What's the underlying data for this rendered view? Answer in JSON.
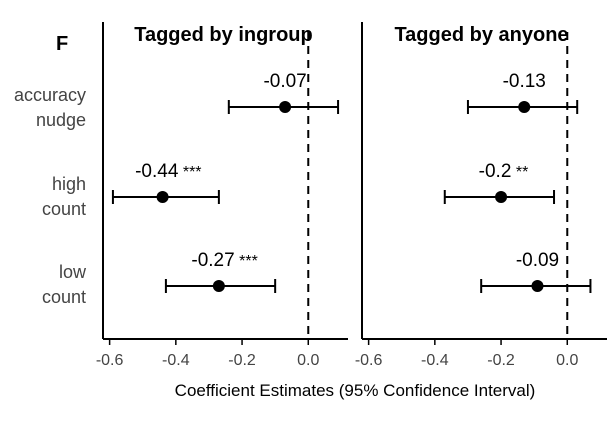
{
  "panel_letter": "F",
  "chart_data": {
    "type": "scatter",
    "subtype": "coefficient-plot-with-error-bars",
    "xlabel": "Coefficient Estimates (95% Confidence Interval)",
    "categories": [
      {
        "lines": [
          "accuracy",
          "nudge"
        ]
      },
      {
        "lines": [
          "high",
          "count"
        ]
      },
      {
        "lines": [
          "low",
          "count"
        ]
      }
    ],
    "xlim": [
      -0.62,
      0.12
    ],
    "xticks": [
      -0.6,
      -0.4,
      -0.2,
      0.0
    ],
    "xtick_labels": [
      "-0.6",
      "-0.4",
      "-0.2",
      "0.0"
    ],
    "reference_line_x": 0.0,
    "panels": [
      {
        "title": "Tagged by ingroup",
        "points": [
          {
            "estimate": -0.07,
            "ci": [
              -0.24,
              0.09
            ],
            "label": "-0.07",
            "stars": ""
          },
          {
            "estimate": -0.44,
            "ci": [
              -0.59,
              -0.27
            ],
            "label": "-0.44",
            "stars": "***"
          },
          {
            "estimate": -0.27,
            "ci": [
              -0.43,
              -0.1
            ],
            "label": "-0.27",
            "stars": "***"
          }
        ]
      },
      {
        "title": "Tagged by anyone",
        "points": [
          {
            "estimate": -0.13,
            "ci": [
              -0.3,
              0.03
            ],
            "label": "-0.13",
            "stars": ""
          },
          {
            "estimate": -0.2,
            "ci": [
              -0.37,
              -0.04
            ],
            "label": "-0.2",
            "stars": "**"
          },
          {
            "estimate": -0.09,
            "ci": [
              -0.26,
              0.07
            ],
            "label": "-0.09",
            "stars": ""
          }
        ]
      }
    ]
  }
}
